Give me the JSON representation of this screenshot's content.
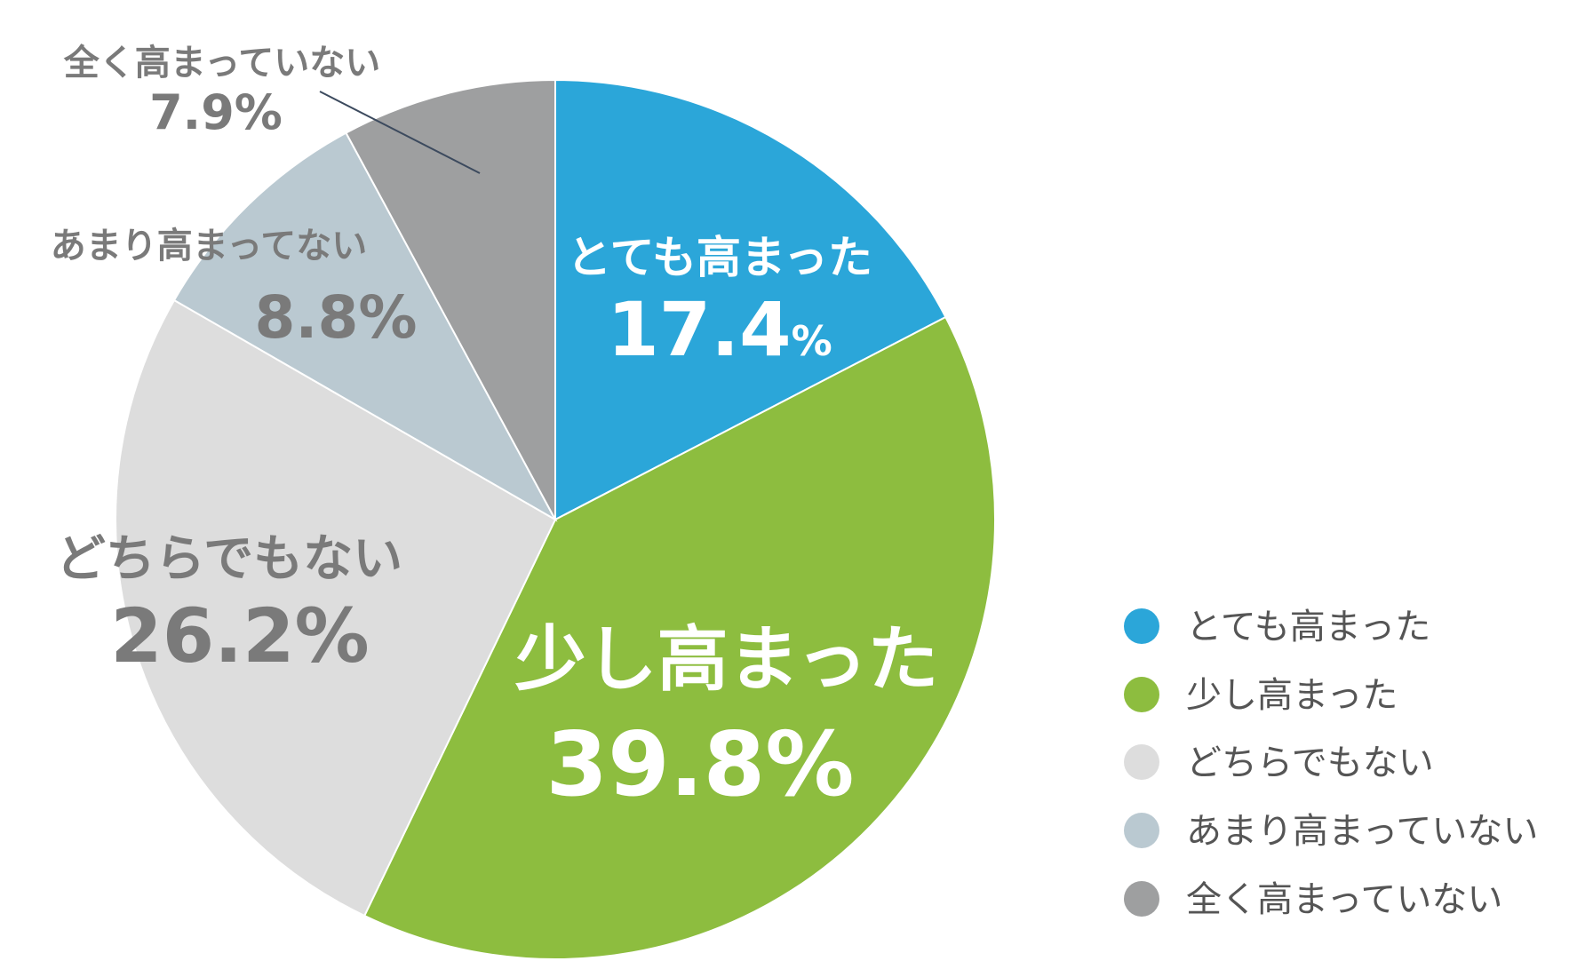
{
  "chart_data": {
    "type": "pie",
    "title": "",
    "slices": [
      {
        "label": "とても高まった",
        "value": 17.4,
        "display": "17.4",
        "unit": "%",
        "color": "#2BA6D9"
      },
      {
        "label": "少し高まった",
        "value": 39.8,
        "display": "39.8",
        "unit": "%",
        "color": "#8DBD3F"
      },
      {
        "label": "どちらでもない",
        "value": 26.2,
        "display": "26.2",
        "unit": "%",
        "color": "#DDDDDD"
      },
      {
        "label": "あまり高まってない",
        "value": 8.8,
        "display": "8.8",
        "unit": "%",
        "color": "#BAC9D1"
      },
      {
        "label": "全く高まっていない",
        "value": 7.9,
        "display": "7.9",
        "unit": "%",
        "color": "#9E9FA0"
      }
    ],
    "legend": {
      "position": "right-bottom",
      "items": [
        "とても高まった",
        "少し高まった",
        "どちらでもない",
        "あまり高まっていない",
        "全く高まっていない"
      ]
    }
  }
}
